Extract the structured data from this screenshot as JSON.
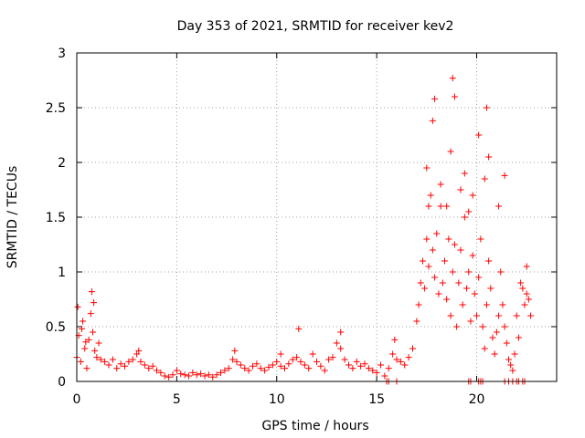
{
  "chart_data": {
    "type": "scatter",
    "title": "Day 353 of 2021, SRMTID for receiver kev2",
    "xlabel": "GPS time / hours",
    "ylabel": "SRMTID / TECUs",
    "xlim": [
      0,
      24
    ],
    "ylim": [
      0,
      3
    ],
    "xticks": [
      0,
      5,
      10,
      15,
      20
    ],
    "yticks": [
      0,
      0.5,
      1,
      1.5,
      2,
      2.5,
      3
    ],
    "xtick_labels": [
      "0",
      "5",
      "10",
      "15",
      "20"
    ],
    "ytick_labels": [
      "0",
      "0.5",
      "1",
      "1.5",
      "2",
      "2.5",
      "3"
    ],
    "grid": true,
    "marker": "+",
    "color": "#ff0000",
    "series": [
      {
        "name": "SRMTID",
        "x": [
          0.0,
          0.1,
          0.2,
          0.3,
          0.4,
          0.5,
          0.6,
          0.7,
          0.8,
          0.9,
          1.0,
          1.1,
          1.2,
          1.4,
          1.6,
          1.8,
          2.0,
          2.2,
          2.4,
          2.6,
          2.8,
          3.0,
          3.2,
          3.4,
          3.6,
          3.8,
          4.0,
          4.2,
          4.4,
          4.6,
          4.8,
          5.0,
          5.2,
          5.4,
          5.6,
          5.8,
          6.0,
          6.2,
          6.4,
          6.6,
          6.8,
          7.0,
          7.2,
          7.4,
          7.6,
          7.8,
          8.0,
          8.2,
          8.4,
          8.6,
          8.8,
          9.0,
          9.2,
          9.4,
          9.6,
          9.8,
          10.0,
          10.2,
          10.4,
          10.6,
          10.8,
          11.0,
          11.2,
          11.4,
          11.6,
          11.8,
          12.0,
          12.2,
          12.4,
          12.6,
          12.8,
          13.0,
          13.2,
          13.4,
          13.6,
          13.8,
          14.0,
          14.2,
          14.4,
          14.6,
          14.8,
          15.0,
          15.2,
          15.4,
          15.6,
          15.8,
          16.0,
          16.2,
          16.4,
          16.6,
          16.8,
          17.0,
          17.1,
          17.2,
          17.3,
          17.4,
          17.5,
          17.6,
          17.7,
          17.8,
          17.9,
          18.0,
          18.1,
          18.2,
          18.3,
          18.4,
          18.5,
          18.6,
          18.7,
          18.8,
          18.9,
          19.0,
          19.1,
          19.2,
          19.3,
          19.4,
          19.5,
          19.6,
          19.7,
          19.8,
          19.9,
          20.0,
          20.1,
          20.2,
          20.3,
          20.4,
          20.5,
          20.6,
          20.7,
          20.8,
          20.9,
          21.0,
          21.1,
          21.2,
          21.3,
          21.4,
          21.5,
          21.6,
          21.7,
          21.8,
          21.9,
          22.0,
          22.1,
          22.2,
          22.3,
          22.4,
          22.5,
          22.6,
          22.7
        ],
        "y": [
          0.22,
          0.42,
          0.18,
          0.55,
          0.3,
          0.12,
          0.38,
          0.62,
          0.45,
          0.28,
          0.22,
          0.35,
          0.2,
          0.18,
          0.15,
          0.2,
          0.12,
          0.16,
          0.14,
          0.18,
          0.2,
          0.25,
          0.18,
          0.15,
          0.12,
          0.14,
          0.1,
          0.08,
          0.05,
          0.04,
          0.06,
          0.1,
          0.07,
          0.06,
          0.05,
          0.08,
          0.06,
          0.07,
          0.05,
          0.06,
          0.04,
          0.06,
          0.08,
          0.1,
          0.12,
          0.2,
          0.18,
          0.15,
          0.12,
          0.1,
          0.14,
          0.16,
          0.12,
          0.1,
          0.13,
          0.15,
          0.18,
          0.14,
          0.12,
          0.16,
          0.2,
          0.22,
          0.18,
          0.15,
          0.12,
          0.25,
          0.18,
          0.14,
          0.1,
          0.2,
          0.22,
          0.35,
          0.3,
          0.2,
          0.15,
          0.12,
          0.18,
          0.14,
          0.16,
          0.12,
          0.1,
          0.08,
          0.15,
          0.05,
          0.12,
          0.25,
          0.2,
          0.18,
          0.15,
          0.22,
          0.3,
          0.55,
          0.7,
          0.9,
          1.1,
          0.85,
          1.3,
          1.05,
          1.7,
          1.2,
          0.95,
          1.35,
          0.8,
          1.6,
          0.9,
          1.1,
          0.75,
          1.3,
          0.6,
          1.0,
          1.25,
          0.5,
          0.9,
          1.2,
          0.7,
          1.5,
          0.85,
          1.0,
          0.55,
          1.15,
          0.8,
          0.6,
          0.95,
          1.3,
          0.5,
          0.3,
          0.7,
          1.1,
          0.85,
          0.4,
          0.25,
          0.45,
          0.6,
          1.0,
          0.7,
          0.5,
          0.35,
          0.2,
          0.15,
          0.1,
          0.25,
          0.6,
          0.4,
          0.9,
          0.85,
          0.7,
          0.8,
          0.75,
          0.6
        ],
        "x_extra": [
          0.05,
          0.25,
          0.45,
          0.75,
          0.85,
          3.1,
          7.9,
          10.2,
          11.1,
          13.2,
          15.9,
          17.5,
          17.6,
          17.8,
          17.9,
          18.2,
          18.5,
          18.7,
          18.8,
          18.9,
          19.2,
          19.4,
          19.6,
          19.8,
          20.1,
          20.4,
          20.5,
          20.6,
          21.1,
          21.4,
          22.5
        ],
        "y_extra": [
          0.68,
          0.48,
          0.36,
          0.82,
          0.72,
          0.28,
          0.28,
          0.25,
          0.48,
          0.45,
          0.38,
          1.95,
          1.6,
          2.38,
          2.58,
          1.8,
          1.6,
          2.1,
          2.77,
          2.6,
          1.75,
          1.9,
          1.55,
          1.7,
          2.25,
          1.85,
          2.5,
          2.05,
          1.6,
          1.88,
          1.05
        ],
        "x_floor": [
          15.5,
          15.6,
          16.0,
          19.6,
          19.7,
          20.1,
          20.2,
          20.3,
          21.4,
          21.6,
          21.8,
          22.0,
          22.1,
          22.3,
          22.4
        ],
        "y_floor": [
          0.0,
          0.0,
          0.0,
          0.0,
          0.0,
          0.0,
          0.0,
          0.0,
          0.0,
          0.0,
          0.0,
          0.0,
          0.0,
          0.0,
          0.0
        ]
      }
    ]
  }
}
